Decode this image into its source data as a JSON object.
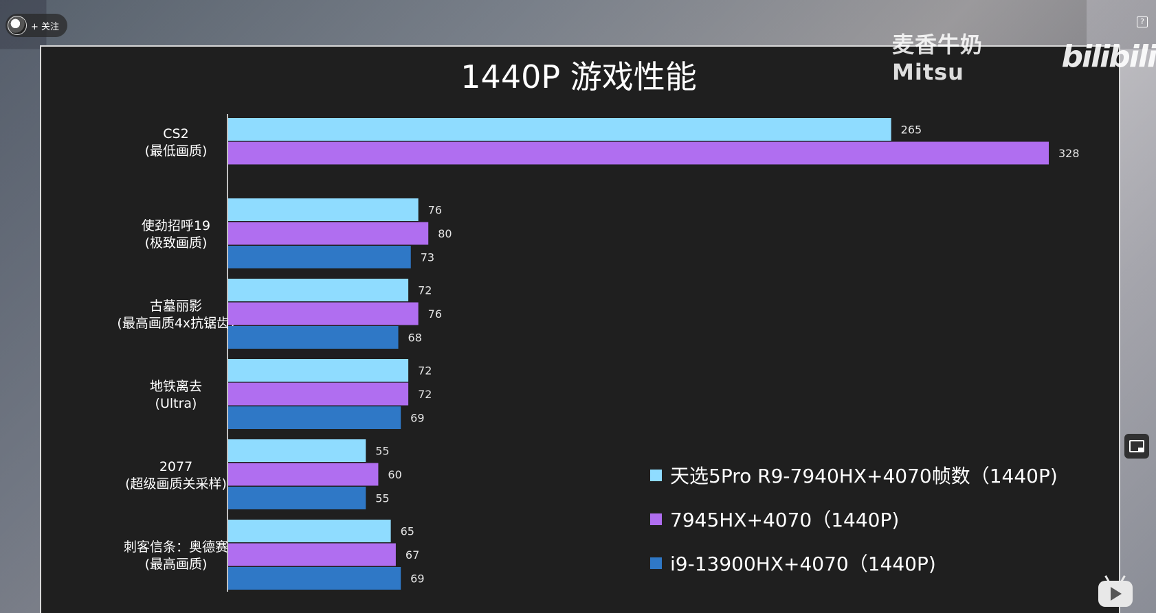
{
  "overlay": {
    "follow_label": "+ 关注",
    "watermark_text": "麦香牛奶Mitsu",
    "site_logo": "bilibili",
    "help_label": "?"
  },
  "colors": {
    "panel_bg": "#1f1f1f",
    "text": "#ffffff"
  },
  "chart_data": {
    "type": "bar",
    "orientation": "horizontal",
    "title": "1440P 游戏性能",
    "categories": [
      {
        "line1": "CS2",
        "line2": "(最低画质)"
      },
      {
        "line1": "使劲招呼19",
        "line2": "(极致画质)"
      },
      {
        "line1": "古墓丽影",
        "line2": "(最高画质4x抗锯齿)"
      },
      {
        "line1": "地铁离去",
        "line2": "(Ultra)"
      },
      {
        "line1": "2077",
        "line2": "(超级画质关采样)"
      },
      {
        "line1": "刺客信条：奥德赛",
        "line2": "(最高画质)"
      }
    ],
    "series": [
      {
        "name": "天选5Pro R9-7940HX+4070帧数（1440P)",
        "color": "#8fdcff",
        "values": [
          265,
          76,
          72,
          72,
          55,
          65
        ]
      },
      {
        "name": "7945HX+4070（1440P)",
        "color": "#b06ef0",
        "values": [
          328,
          80,
          76,
          72,
          60,
          67
        ]
      },
      {
        "name": "i9-13900HX+4070（1440P)",
        "color": "#2f78c6",
        "values": [
          null,
          73,
          68,
          69,
          55,
          69
        ]
      }
    ],
    "xlim": [
      0,
      328
    ],
    "grid": false,
    "legend_position": "bottom-right"
  }
}
